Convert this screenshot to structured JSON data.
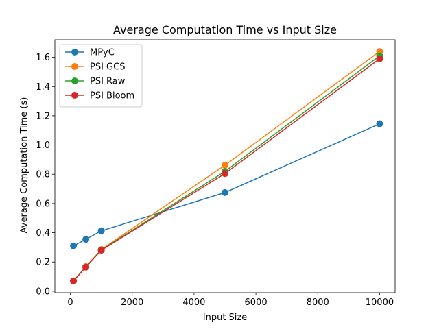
{
  "chart_data": {
    "type": "line",
    "title": "Average Computation Time vs Input Size",
    "xlabel": "Input Size",
    "ylabel": "Average Computation Time (s)",
    "xlim": [
      -500,
      10500
    ],
    "ylim": [
      -0.01,
      1.72
    ],
    "xticks": [
      0,
      2000,
      4000,
      6000,
      8000,
      10000
    ],
    "xtick_labels": [
      "0",
      "2000",
      "4000",
      "6000",
      "8000",
      "10000"
    ],
    "yticks": [
      0.0,
      0.2,
      0.4,
      0.6,
      0.8,
      1.0,
      1.2,
      1.4,
      1.6
    ],
    "ytick_labels": [
      "0.0",
      "0.2",
      "0.4",
      "0.6",
      "0.8",
      "1.0",
      "1.2",
      "1.4",
      "1.6"
    ],
    "grid": false,
    "legend_position": "top-left",
    "x": [
      100,
      500,
      1000,
      5000,
      10000
    ],
    "series": [
      {
        "name": "MPyC",
        "color": "#1f77b4",
        "values": [
          0.31,
          0.355,
          0.413,
          0.675,
          1.145
        ]
      },
      {
        "name": "PSI GCS",
        "color": "#ff7f0e",
        "values": [
          0.07,
          0.168,
          0.285,
          0.862,
          1.64
        ]
      },
      {
        "name": "PSI Raw",
        "color": "#2ca02c",
        "values": [
          0.07,
          0.166,
          0.282,
          0.82,
          1.61
        ]
      },
      {
        "name": "PSI Bloom",
        "color": "#d62728",
        "values": [
          0.07,
          0.165,
          0.28,
          0.805,
          1.59
        ]
      }
    ]
  }
}
